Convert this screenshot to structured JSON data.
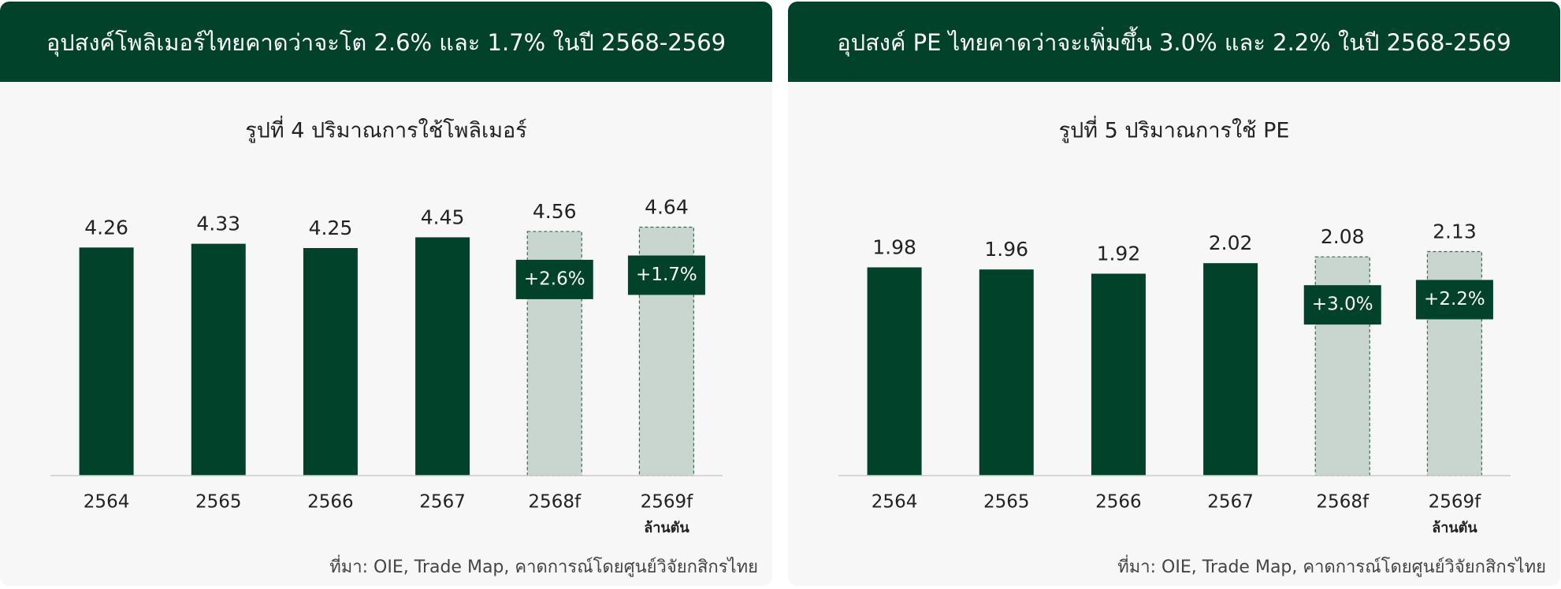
{
  "chart_data": [
    {
      "type": "bar",
      "header": "อุปสงค์โพลิเมอร์ไทยคาดว่าจะโต 2.6%  และ 1.7%  ในปี 2568-2569",
      "title": "รูปที่ 4 ปริมาณการใช้โพลิเมอร์",
      "categories": [
        "2564",
        "2565",
        "2566",
        "2567",
        "2568f",
        "2569f"
      ],
      "values": [
        4.26,
        4.33,
        4.25,
        4.45,
        4.56,
        4.64
      ],
      "colors": [
        "#00432a",
        "#00432a",
        "#00432a",
        "#00432a",
        "#c8d6cf",
        "#c8d6cf"
      ],
      "annotations": [
        null,
        null,
        null,
        null,
        "+2.6%",
        "+1.7%"
      ],
      "unit": "ล้านตัน",
      "ylim": [
        0,
        5.5
      ],
      "source": "ที่มา: OIE, Trade Map, คาดการณ์โดยศูนย์วิจัยกสิกรไทย"
    },
    {
      "type": "bar",
      "header": "อุปสงค์ PE ไทยคาดว่าจะเพิ่มขึ้น 3.0% และ 2.2% ในปี 2568-2569",
      "title": "รูปที่ 5 ปริมาณการใช้ PE",
      "categories": [
        "2564",
        "2565",
        "2566",
        "2567",
        "2568f",
        "2569f"
      ],
      "values": [
        1.98,
        1.96,
        1.92,
        2.02,
        2.08,
        2.13
      ],
      "colors": [
        "#00432a",
        "#00432a",
        "#00432a",
        "#00432a",
        "#c8d6cf",
        "#c8d6cf"
      ],
      "annotations": [
        null,
        null,
        null,
        null,
        "+3.0%",
        "+2.2%"
      ],
      "unit": "ล้านตัน",
      "ylim": [
        0,
        2.8
      ],
      "source": "ที่มา: OIE, Trade Map, คาดการณ์โดยศูนย์วิจัยกสิกรไทย"
    }
  ]
}
